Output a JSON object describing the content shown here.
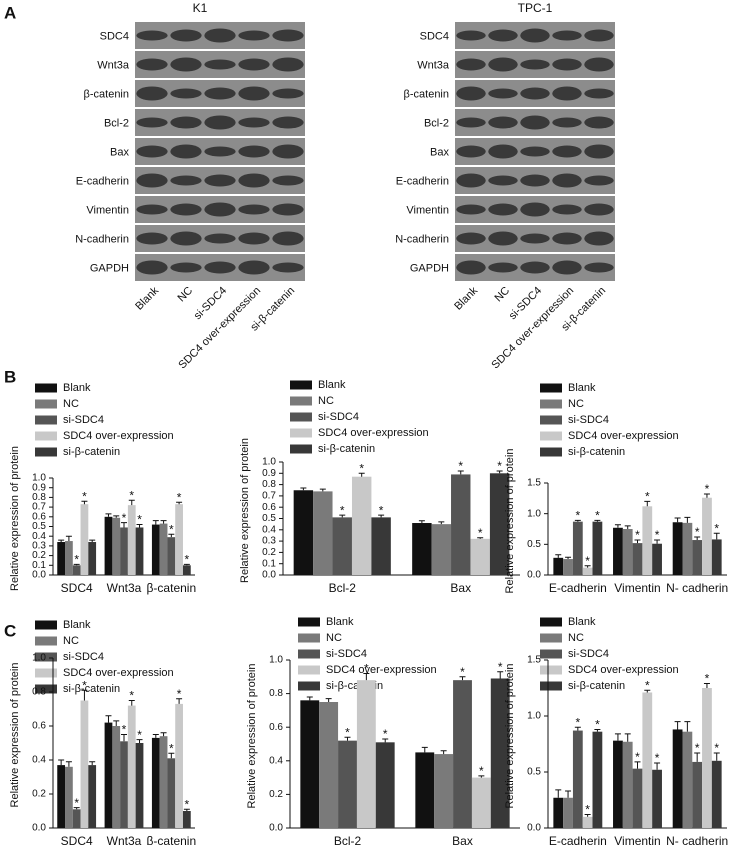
{
  "panels": [
    "A",
    "B",
    "C"
  ],
  "blots": [
    {
      "title": "K1",
      "proteins": [
        "SDC4",
        "Wnt3a",
        "β-catenin",
        "Bcl-2",
        "Bax",
        "E-cadherin",
        "Vimentin",
        "N-cadherin",
        "GAPDH"
      ],
      "lanes": [
        "Blank",
        "NC",
        "si-SDC4",
        "SDC4 over-expression",
        "si-β-catenin"
      ]
    },
    {
      "title": "TPC-1",
      "proteins": [
        "SDC4",
        "Wnt3a",
        "β-catenin",
        "Bcl-2",
        "Bax",
        "E-cadherin",
        "Vimentin",
        "N-cadherin",
        "GAPDH"
      ],
      "lanes": [
        "Blank",
        "NC",
        "si-SDC4",
        "SDC4 over-expression",
        "si-β-catenin"
      ]
    }
  ],
  "chart_data": [
    {
      "type": "bar",
      "ylabel": "Relative expression of protein",
      "categories": [
        "SDC4",
        "Wnt3a",
        "β-catenin"
      ],
      "ylim": [
        0,
        1
      ],
      "yticks": [
        {
          "value": 0,
          "label": "0.0"
        },
        0.1,
        0.2,
        0.3,
        0.4,
        0.5,
        0.6,
        0.7,
        0.8,
        0.9,
        {
          "value": 1,
          "label": "1.0"
        }
      ],
      "series": [
        {
          "name": "Blank",
          "color": "#111111",
          "values": [
            0.34,
            0.6,
            0.52
          ],
          "errors": [
            0.02,
            0.03,
            0.04
          ],
          "markers": [
            null,
            null,
            null
          ]
        },
        {
          "name": "NC",
          "color": "#7a7a7a",
          "values": [
            0.35,
            0.59,
            0.53
          ],
          "errors": [
            0.05,
            0.02,
            0.03
          ],
          "markers": [
            null,
            null,
            null
          ]
        },
        {
          "name": "si-SDC4",
          "color": "#555555",
          "values": [
            0.1,
            0.49,
            0.39
          ],
          "errors": [
            0.01,
            0.05,
            0.03
          ],
          "markers": [
            "*",
            "*",
            "*"
          ]
        },
        {
          "name": "SDC4 over-expression",
          "color": "#c8c8c8",
          "values": [
            0.73,
            0.72,
            0.73
          ],
          "errors": [
            0.03,
            0.05,
            0.02
          ],
          "markers": [
            "*",
            "*",
            "*"
          ]
        },
        {
          "name": "si-β-catenin",
          "color": "#383838",
          "values": [
            0.34,
            0.49,
            0.1
          ],
          "errors": [
            0.02,
            0.03,
            0.01
          ],
          "markers": [
            null,
            "*",
            "*"
          ]
        }
      ]
    },
    {
      "type": "bar",
      "ylabel": "Relative expression of protein",
      "categories": [
        "Bcl-2",
        "Bax"
      ],
      "ylim": [
        0,
        1
      ],
      "yticks": [
        {
          "value": 0,
          "label": "0.0"
        },
        0.1,
        0.2,
        0.3,
        0.4,
        0.5,
        0.6,
        0.7,
        0.8,
        0.9,
        {
          "value": 1,
          "label": "1.0"
        }
      ],
      "series": [
        {
          "name": "Blank",
          "color": "#111111",
          "values": [
            0.75,
            0.46
          ],
          "errors": [
            0.02,
            0.02
          ],
          "markers": [
            null,
            null
          ]
        },
        {
          "name": "NC",
          "color": "#7a7a7a",
          "values": [
            0.74,
            0.45
          ],
          "errors": [
            0.02,
            0.02
          ],
          "markers": [
            null,
            null
          ]
        },
        {
          "name": "si-SDC4",
          "color": "#555555",
          "values": [
            0.51,
            0.89
          ],
          "errors": [
            0.02,
            0.03
          ],
          "markers": [
            "*",
            "*"
          ]
        },
        {
          "name": "SDC4 over-expression",
          "color": "#c8c8c8",
          "values": [
            0.87,
            0.32
          ],
          "errors": [
            0.03,
            0.01
          ],
          "markers": [
            "*",
            "*"
          ]
        },
        {
          "name": "si-β-catenin",
          "color": "#383838",
          "values": [
            0.51,
            0.9
          ],
          "errors": [
            0.02,
            0.02
          ],
          "markers": [
            "*",
            "*"
          ]
        }
      ]
    },
    {
      "type": "bar",
      "ylabel": "Relative expression of protein",
      "categories": [
        "E-cadherin",
        "Vimentin",
        "N- cadherin"
      ],
      "ylim": [
        0,
        1.5
      ],
      "yticks": [
        {
          "value": 0,
          "label": "0.0"
        },
        0.5,
        {
          "value": 1,
          "label": "1.0"
        },
        1.5
      ],
      "series": [
        {
          "name": "Blank",
          "color": "#111111",
          "values": [
            0.28,
            0.77,
            0.86
          ],
          "errors": [
            0.05,
            0.05,
            0.07
          ],
          "markers": [
            null,
            null,
            null
          ]
        },
        {
          "name": "NC",
          "color": "#7a7a7a",
          "values": [
            0.26,
            0.75,
            0.85
          ],
          "errors": [
            0.03,
            0.05,
            0.09
          ],
          "markers": [
            null,
            null,
            null
          ]
        },
        {
          "name": "si-SDC4",
          "color": "#555555",
          "values": [
            0.87,
            0.52,
            0.57
          ],
          "errors": [
            0.02,
            0.05,
            0.05
          ],
          "markers": [
            "*",
            "*",
            "*"
          ]
        },
        {
          "name": "SDC4 over-expression",
          "color": "#c8c8c8",
          "values": [
            0.12,
            1.12,
            1.26
          ],
          "errors": [
            0.03,
            0.08,
            0.06
          ],
          "markers": [
            "*",
            "*",
            "*"
          ]
        },
        {
          "name": "si-β-catenin",
          "color": "#383838",
          "values": [
            0.87,
            0.51,
            0.58
          ],
          "errors": [
            0.02,
            0.06,
            0.1
          ],
          "markers": [
            "*",
            "*",
            "*"
          ]
        }
      ]
    },
    {
      "type": "bar",
      "ylabel": "Relative expression of protein",
      "categories": [
        "SDC4",
        "Wnt3a",
        "β-catenin"
      ],
      "ylim": [
        0,
        1
      ],
      "yticks": [
        {
          "value": 0,
          "label": "0.0"
        },
        0.2,
        0.4,
        0.6,
        0.8,
        {
          "value": 1,
          "label": "1.0"
        }
      ],
      "series": [
        {
          "name": "Blank",
          "color": "#111111",
          "values": [
            0.37,
            0.62,
            0.53
          ],
          "errors": [
            0.03,
            0.04,
            0.02
          ],
          "markers": [
            null,
            null,
            null
          ]
        },
        {
          "name": "NC",
          "color": "#7a7a7a",
          "values": [
            0.36,
            0.6,
            0.54
          ],
          "errors": [
            0.03,
            0.03,
            0.02
          ],
          "markers": [
            null,
            null,
            null
          ]
        },
        {
          "name": "si-SDC4",
          "color": "#555555",
          "values": [
            0.11,
            0.51,
            0.41
          ],
          "errors": [
            0.01,
            0.04,
            0.03
          ],
          "markers": [
            "*",
            "*",
            "*"
          ]
        },
        {
          "name": "SDC4 over-expression",
          "color": "#c8c8c8",
          "values": [
            0.75,
            0.72,
            0.73
          ],
          "errors": [
            0.06,
            0.03,
            0.03
          ],
          "markers": [
            "*",
            "*",
            "*"
          ]
        },
        {
          "name": "si-β-catenin",
          "color": "#383838",
          "values": [
            0.37,
            0.5,
            0.1
          ],
          "errors": [
            0.02,
            0.02,
            0.01
          ],
          "markers": [
            null,
            "*",
            "*"
          ]
        }
      ]
    },
    {
      "type": "bar",
      "ylabel": "Relative expression of protein",
      "categories": [
        "Bcl-2",
        "Bax"
      ],
      "ylim": [
        0,
        1
      ],
      "yticks": [
        {
          "value": 0,
          "label": "0.0"
        },
        0.2,
        0.4,
        0.6,
        0.8,
        {
          "value": 1,
          "label": "1.0"
        }
      ],
      "series": [
        {
          "name": "Blank",
          "color": "#111111",
          "values": [
            0.76,
            0.45
          ],
          "errors": [
            0.02,
            0.03
          ],
          "markers": [
            null,
            null
          ]
        },
        {
          "name": "NC",
          "color": "#7a7a7a",
          "values": [
            0.75,
            0.44
          ],
          "errors": [
            0.02,
            0.02
          ],
          "markers": [
            null,
            null
          ]
        },
        {
          "name": "si-SDC4",
          "color": "#555555",
          "values": [
            0.52,
            0.88
          ],
          "errors": [
            0.02,
            0.02
          ],
          "markers": [
            "*",
            "*"
          ]
        },
        {
          "name": "SDC4 over-expression",
          "color": "#c8c8c8",
          "values": [
            0.88,
            0.3
          ],
          "errors": [
            0.04,
            0.01
          ],
          "markers": [
            "*",
            "*"
          ]
        },
        {
          "name": "si-β-catenin",
          "color": "#383838",
          "values": [
            0.51,
            0.89
          ],
          "errors": [
            0.02,
            0.04
          ],
          "markers": [
            "*",
            "*"
          ]
        }
      ]
    },
    {
      "type": "bar",
      "ylabel": "Relative expression of protein",
      "categories": [
        "E-cadherin",
        "Vimentin",
        "N- cadherin"
      ],
      "ylim": [
        0,
        1.5
      ],
      "yticks": [
        {
          "value": 0,
          "label": "0.0"
        },
        0.5,
        {
          "value": 1,
          "label": "1.0"
        },
        1.5
      ],
      "series": [
        {
          "name": "Blank",
          "color": "#111111",
          "values": [
            0.27,
            0.78,
            0.88
          ],
          "errors": [
            0.07,
            0.06,
            0.07
          ],
          "markers": [
            null,
            null,
            null
          ]
        },
        {
          "name": "NC",
          "color": "#7a7a7a",
          "values": [
            0.27,
            0.77,
            0.86
          ],
          "errors": [
            0.06,
            0.07,
            0.09
          ],
          "markers": [
            null,
            null,
            null
          ]
        },
        {
          "name": "si-SDC4",
          "color": "#555555",
          "values": [
            0.87,
            0.53,
            0.59
          ],
          "errors": [
            0.03,
            0.06,
            0.08
          ],
          "markers": [
            "*",
            "*",
            "*"
          ]
        },
        {
          "name": "SDC4 over-expression",
          "color": "#c8c8c8",
          "values": [
            0.1,
            1.21,
            1.25
          ],
          "errors": [
            0.02,
            0.02,
            0.04
          ],
          "markers": [
            "*",
            "*",
            "*"
          ]
        },
        {
          "name": "si-β-catenin",
          "color": "#383838",
          "values": [
            0.86,
            0.52,
            0.6
          ],
          "errors": [
            0.02,
            0.06,
            0.07
          ],
          "markers": [
            "*",
            "*",
            "*"
          ]
        }
      ]
    }
  ]
}
